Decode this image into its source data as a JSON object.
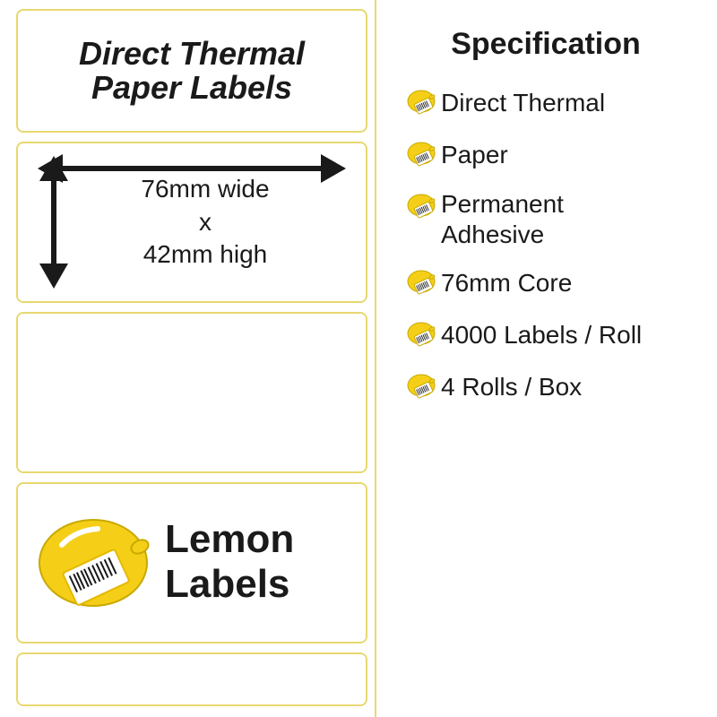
{
  "header": {
    "title_line1": "Direct Thermal",
    "title_line2": "Paper Labels",
    "title_fontsize": 36
  },
  "dimensions": {
    "width_label": "76mm wide",
    "sep": "x",
    "height_label": "42mm high",
    "fontsize": 28
  },
  "logo": {
    "line1": "Lemon",
    "line2": "Labels",
    "fontsize": 44,
    "lemon_fill": "#f5cf17",
    "lemon_stroke": "#c9a900",
    "label_fill": "#ffffff",
    "label_stroke": "#e5b800"
  },
  "spec": {
    "title": "Specification",
    "title_fontsize": 34,
    "item_fontsize": 28,
    "items": [
      "Direct Thermal",
      "Paper",
      "Permanent Adhesive",
      "76mm Core",
      "4000 Labels / Roll",
      "4 Rolls / Box"
    ],
    "bullet_fill": "#f5cf17",
    "bullet_stroke": "#c9a900"
  },
  "colors": {
    "box_border": "#e8d870",
    "text": "#1a1a1a",
    "background": "#ffffff",
    "arrow": "#1a1a1a"
  }
}
